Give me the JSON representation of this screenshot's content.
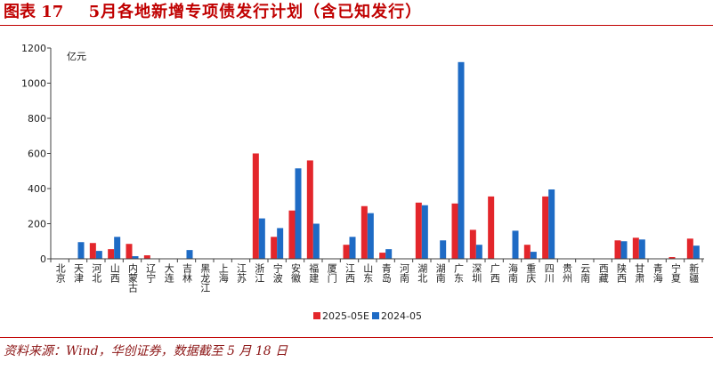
{
  "figure": {
    "label": "图表 17",
    "title": "5月各地新增专项债发行计划（含已知发行）"
  },
  "source": "资料来源：Wind，华创证券，数据截至 5 月 18 日",
  "colors": {
    "accent": "#C00000",
    "source_text": "#8B1414"
  },
  "chart_data": {
    "type": "bar",
    "ylabel": "亿元",
    "ylim": [
      0,
      1200
    ],
    "yticks": [
      0,
      200,
      400,
      600,
      800,
      1000,
      1200
    ],
    "grid": false,
    "legend_position": "bottom-center",
    "categories": [
      "北京",
      "天津",
      "河北",
      "山西",
      "内蒙古",
      "辽宁",
      "大连",
      "吉林",
      "黑龙江",
      "上海",
      "江苏",
      "浙江",
      "宁波",
      "安徽",
      "福建",
      "厦门",
      "江西",
      "山东",
      "青岛",
      "河南",
      "湖北",
      "湖南",
      "广东",
      "深圳",
      "广西",
      "海南",
      "重庆",
      "四川",
      "贵州",
      "云南",
      "西藏",
      "陕西",
      "甘肃",
      "青海",
      "宁夏",
      "新疆"
    ],
    "series": [
      {
        "name": "2025-05E",
        "color": "#E3262B",
        "values": [
          0,
          0,
          90,
          55,
          85,
          20,
          0,
          0,
          0,
          0,
          0,
          600,
          125,
          275,
          560,
          0,
          80,
          300,
          35,
          0,
          320,
          0,
          315,
          165,
          355,
          0,
          80,
          355,
          0,
          0,
          0,
          105,
          120,
          0,
          10,
          115
        ]
      },
      {
        "name": "2024-05",
        "color": "#1E6BC5",
        "values": [
          0,
          95,
          45,
          125,
          15,
          0,
          0,
          50,
          0,
          0,
          0,
          230,
          175,
          515,
          200,
          0,
          125,
          260,
          55,
          0,
          305,
          105,
          1120,
          80,
          0,
          160,
          40,
          395,
          0,
          0,
          0,
          100,
          110,
          0,
          0,
          75
        ]
      }
    ]
  }
}
